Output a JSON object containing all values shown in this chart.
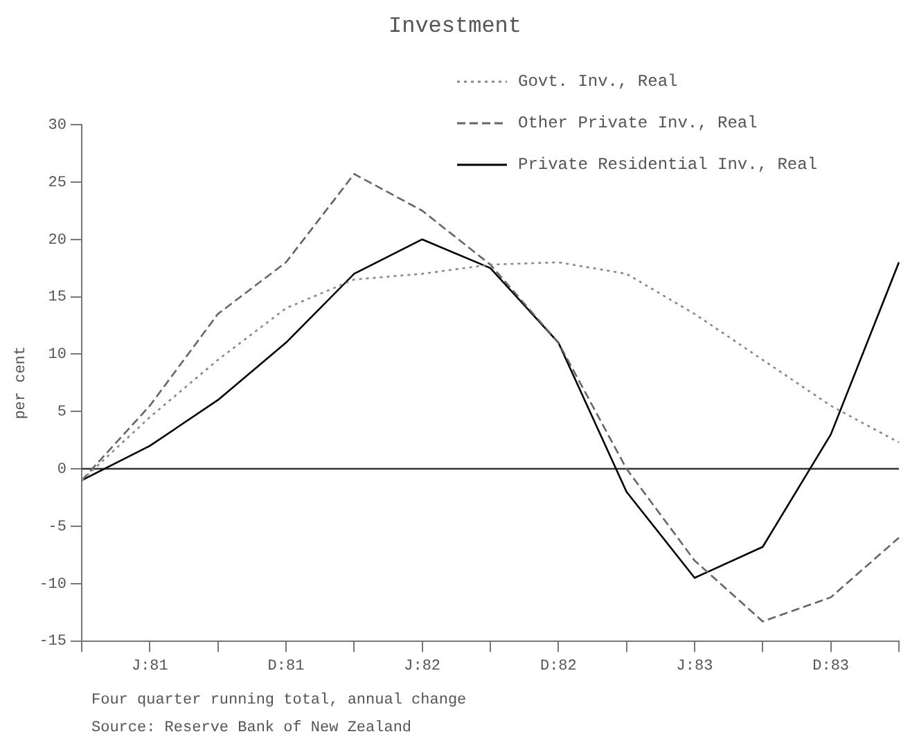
{
  "chart_data": {
    "type": "line",
    "title": "Investment",
    "ylabel": "per cent",
    "categories": [
      null,
      "J:81",
      null,
      "D:81",
      null,
      "J:82",
      null,
      "D:82",
      null,
      "J:83",
      null,
      "D:83",
      null
    ],
    "series": [
      {
        "name": "Govt. Inv., Real",
        "color": "#888888",
        "line_style": "dotted",
        "values": [
          -1,
          4.5,
          9.5,
          14,
          16.5,
          17,
          17.8,
          18,
          17,
          13.5,
          9.5,
          5.5,
          2.3
        ]
      },
      {
        "name": "Other Private Inv., Real",
        "color": "#666666",
        "line_style": "dashed",
        "values": [
          -1,
          5.5,
          13.5,
          18,
          25.7,
          22.5,
          17.8,
          11,
          0,
          -8,
          -13.3,
          -11.2,
          -6
        ]
      },
      {
        "name": "Private Residential Inv., Real",
        "color": "#000000",
        "line_style": "solid",
        "values": [
          -1,
          2,
          6,
          11,
          17,
          20,
          17.5,
          11,
          -2,
          -9.5,
          -6.8,
          3,
          18
        ]
      }
    ],
    "ylim": [
      -15,
      30
    ],
    "yticks": [
      -15,
      -10,
      -5,
      0,
      5,
      10,
      15,
      20,
      25,
      30
    ],
    "ref_lines": [
      {
        "axis": "y",
        "value": 0,
        "color": "#333333"
      }
    ],
    "grid": false,
    "legend": "top right",
    "marker": "none",
    "annotations": [
      "Four quarter running total, annual change",
      "Source: Reserve Bank of New Zealand"
    ]
  }
}
